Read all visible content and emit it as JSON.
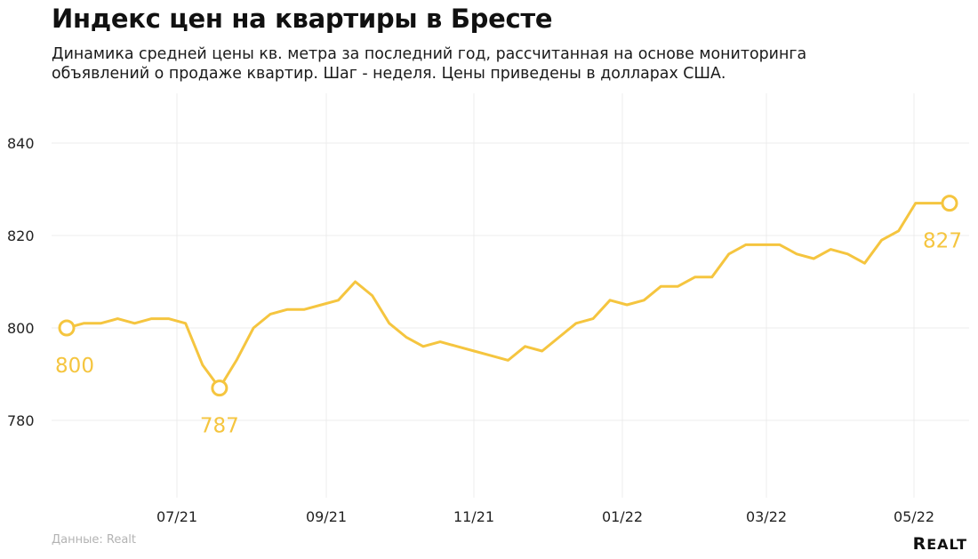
{
  "header": {
    "title": "Индекс цен на квартиры в Бресте",
    "subtitle_line1": "Динамика средней цены кв. метра за последний год, рассчитанная на основе мониторинга",
    "subtitle_line2": "объявлений о продаже квартир. Шаг - неделя. Цены приведены в долларах США."
  },
  "footer": {
    "source": "Данные: Realt",
    "logo": "Realt"
  },
  "colors": {
    "line": "#f5c53f",
    "grid": "#ececec",
    "text": "#111111",
    "muted": "#b3b3b3"
  },
  "chart_data": {
    "type": "line",
    "title": "Индекс цен на квартиры в Бресте",
    "xlabel": "",
    "ylabel": "",
    "x_tick_labels": [
      "07/21",
      "09/21",
      "11/21",
      "01/22",
      "03/22",
      "05/22"
    ],
    "y_ticks": [
      780,
      800,
      820,
      840
    ],
    "ylim": [
      765,
      850
    ],
    "grid": true,
    "legend": "none",
    "series": [
      {
        "values": [
          800,
          801,
          801,
          802,
          801,
          802,
          802,
          801,
          792,
          787,
          793,
          800,
          803,
          804,
          804,
          805,
          806,
          810,
          807,
          801,
          798,
          796,
          797,
          796,
          795,
          794,
          793,
          796,
          795,
          798,
          801,
          802,
          806,
          805,
          806,
          809,
          809,
          811,
          811,
          816,
          818,
          818,
          818,
          816,
          815,
          817,
          816,
          814,
          819,
          821,
          827,
          827,
          827
        ]
      }
    ],
    "annotations": [
      {
        "index": 0,
        "value": 800,
        "label": "800"
      },
      {
        "index": 9,
        "value": 787,
        "label": "787"
      },
      {
        "index": 52,
        "value": 827,
        "label": "827"
      }
    ]
  }
}
